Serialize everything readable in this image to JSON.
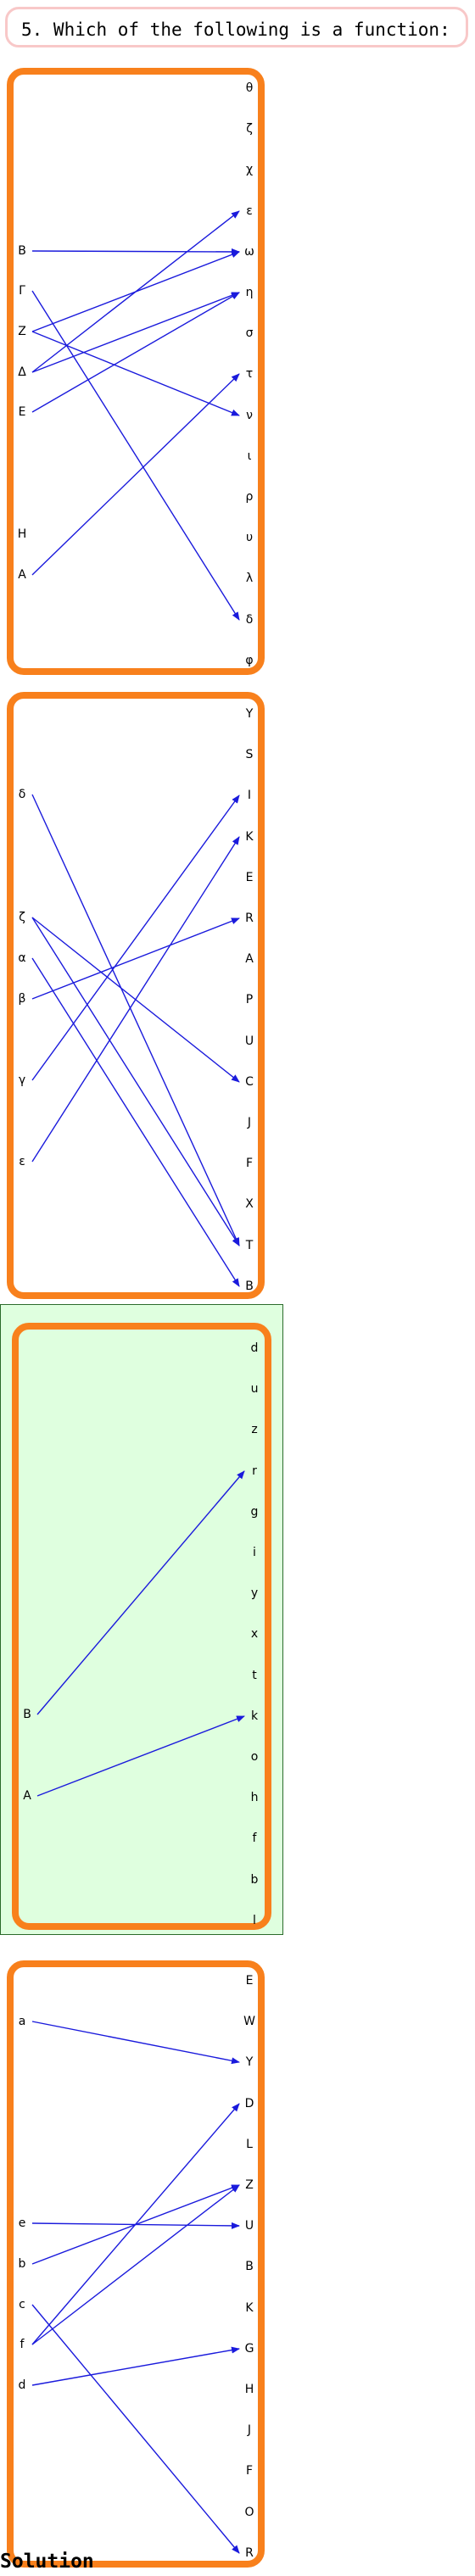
{
  "question": {
    "text": "5. Which of the following is a function:"
  },
  "answer_options": [
    {
      "domain": [
        "B",
        "Γ",
        "Z",
        "Δ",
        "E",
        "H",
        "A"
      ],
      "codomain": [
        "θ",
        "ζ",
        "χ",
        "ε",
        "ω",
        "η",
        "σ",
        "τ",
        "ν",
        "ι",
        "ρ",
        "υ",
        "λ",
        "δ",
        "φ"
      ],
      "mappings": [
        [
          "B",
          "ω"
        ],
        [
          "Γ",
          "δ"
        ],
        [
          "Z",
          "ω"
        ],
        [
          "Z",
          "ν"
        ],
        [
          "Δ",
          "ε"
        ],
        [
          "Δ",
          "η"
        ],
        [
          "E",
          "η"
        ],
        [
          "A",
          "τ"
        ]
      ],
      "highlighted": false
    },
    {
      "domain": [
        "δ",
        "ζ",
        "α",
        "β",
        "γ",
        "ε"
      ],
      "codomain": [
        "Y",
        "S",
        "I",
        "K",
        "E",
        "R",
        "A",
        "P",
        "U",
        "C",
        "J",
        "F",
        "X",
        "T",
        "B"
      ],
      "mappings": [
        [
          "δ",
          "T"
        ],
        [
          "ζ",
          "C"
        ],
        [
          "ζ",
          "T"
        ],
        [
          "α",
          "B"
        ],
        [
          "β",
          "R"
        ],
        [
          "γ",
          "I"
        ],
        [
          "ε",
          "K"
        ]
      ],
      "highlighted": false
    },
    {
      "domain": [
        "B",
        "A"
      ],
      "codomain": [
        "d",
        "u",
        "z",
        "r",
        "g",
        "i",
        "y",
        "x",
        "t",
        "k",
        "o",
        "h",
        "f",
        "b",
        "l"
      ],
      "mappings": [
        [
          "B",
          "r"
        ],
        [
          "A",
          "k"
        ]
      ],
      "highlighted": true
    },
    {
      "domain": [
        "a",
        "e",
        "b",
        "c",
        "f",
        "d"
      ],
      "codomain": [
        "E",
        "W",
        "Y",
        "D",
        "L",
        "Z",
        "U",
        "B",
        "K",
        "G",
        "H",
        "J",
        "F",
        "O",
        "R"
      ],
      "mappings": [
        [
          "a",
          "Y"
        ],
        [
          "e",
          "U"
        ],
        [
          "b",
          "Z"
        ],
        [
          "c",
          "R"
        ],
        [
          "f",
          "D"
        ],
        [
          "f",
          "Z"
        ],
        [
          "d",
          "G"
        ]
      ],
      "highlighted": false
    }
  ],
  "footer": {
    "solution_label": "Solution"
  },
  "colors": {
    "panel_border": "#f8801c",
    "arrow": "#1a1adc",
    "highlight_bg": "#dfffdf",
    "question_border": "#f8c8c8"
  }
}
